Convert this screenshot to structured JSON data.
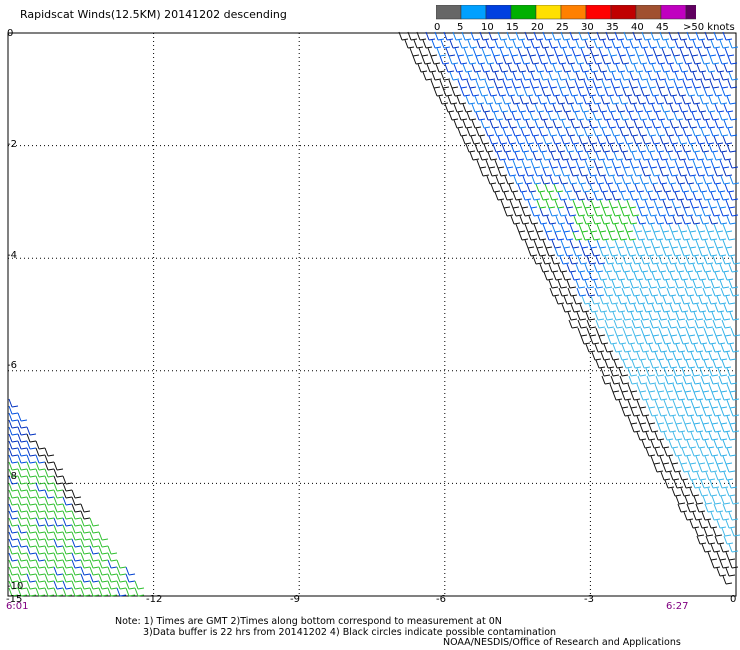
{
  "title": "Rapidscat Winds(12.5KM) 20141202 descending",
  "colorbar": {
    "swatches": [
      "#666666",
      "#00a0ff",
      "#0040e0",
      "#00b000",
      "#ffe000",
      "#ff8000",
      "#ff0000",
      "#c00000",
      "#a05030",
      "#c000c0",
      "#600060"
    ],
    "labels": [
      "0",
      "5",
      "10",
      "15",
      "20",
      "25",
      "30",
      "35",
      "40",
      "45",
      ">50 knots"
    ]
  },
  "axes": {
    "x_ticks": [
      "-12",
      "-9",
      "-6",
      "-3",
      "0"
    ],
    "x_values": [
      -12,
      -9,
      -6,
      -3,
      0
    ],
    "y_ticks": [
      "0",
      "-2",
      "-4",
      "-6",
      "-8",
      "-10"
    ],
    "y_values": [
      0,
      -2,
      -4,
      -6,
      -8,
      -10
    ],
    "x_corner_label": "-15",
    "xlim": [
      -15,
      0
    ],
    "ylim": [
      -10,
      0
    ]
  },
  "times": {
    "left": "6:01",
    "right": "6:27"
  },
  "notes": [
    "Note: 1) Times are GMT 2)Times along bottom correspond to measurement at 0N",
    "3)Data buffer is 22 hrs from 20141202 4) Black circles indicate possible contamination",
    "NOAA/NESDIS/Office of Research and Applications"
  ]
}
